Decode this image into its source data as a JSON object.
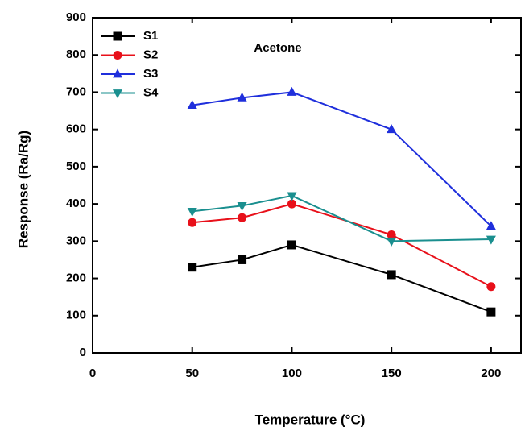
{
  "chart_data": {
    "type": "line",
    "xlabel": "Temperature (°C)",
    "ylabel": "Response (Ra/Rg)",
    "annotation": "Acetone",
    "x": [
      50,
      75,
      100,
      150,
      200
    ],
    "series": [
      {
        "name": "S1",
        "color": "#000000",
        "marker": "square",
        "values": [
          230,
          250,
          290,
          210,
          110
        ]
      },
      {
        "name": "S2",
        "color": "#e8101a",
        "marker": "circle",
        "values": [
          350,
          363,
          400,
          317,
          178
        ]
      },
      {
        "name": "S3",
        "color": "#1f2fdc",
        "marker": "triangle-up",
        "values": [
          665,
          685,
          700,
          600,
          340
        ]
      },
      {
        "name": "S4",
        "color": "#1a8f8f",
        "marker": "triangle-down",
        "values": [
          380,
          395,
          422,
          300,
          305
        ]
      }
    ],
    "xlim": [
      0,
      215
    ],
    "xticks": [
      0,
      50,
      100,
      150,
      200
    ],
    "ylim": [
      0,
      900
    ],
    "yticks": [
      0,
      100,
      200,
      300,
      400,
      500,
      600,
      700,
      800,
      900
    ],
    "legend": "upper left"
  }
}
